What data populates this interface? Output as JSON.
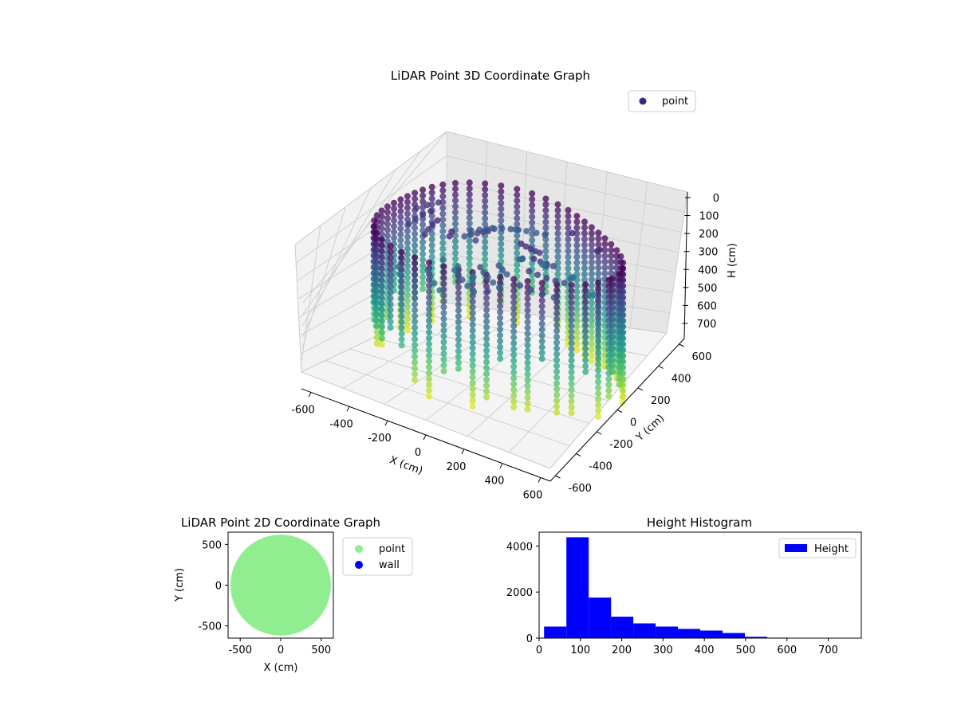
{
  "chart_data": [
    {
      "type": "scatter",
      "projection": "3d",
      "title": "LiDAR Point 3D Coordinate Graph",
      "xlabel": "X (cm)",
      "ylabel": "Y (cm)",
      "zlabel": "H (cm)",
      "xticks": [
        -600,
        -400,
        -200,
        0,
        200,
        400,
        600
      ],
      "yticks": [
        600,
        400,
        200,
        0,
        -200,
        -400,
        -600
      ],
      "zticks": [
        0,
        100,
        200,
        300,
        400,
        500,
        600,
        700
      ],
      "xlim": [
        -650,
        650
      ],
      "ylim": [
        -650,
        650
      ],
      "zlim": [
        0,
        780
      ],
      "z_axis_inverted": true,
      "colormap": "viridis",
      "grid": true,
      "legend": {
        "position": "top-right",
        "entries": [
          {
            "label": "point",
            "color": "#3b2a7a"
          }
        ]
      },
      "series": [
        {
          "name": "point",
          "description_of_shape": "ring of vertical point columns around a room, radius ~600 cm, heights 0–700 cm, colored by height",
          "ring_radius_cm": 600,
          "height_range_cm": [
            0,
            720
          ]
        }
      ]
    },
    {
      "type": "scatter",
      "title": "LiDAR Point 2D Coordinate Graph",
      "xlabel": "X (cm)",
      "ylabel": "Y (cm)",
      "xticks": [
        -500,
        0,
        500
      ],
      "yticks": [
        500,
        0,
        -500
      ],
      "xlim": [
        -650,
        650
      ],
      "ylim": [
        -650,
        650
      ],
      "legend": {
        "position": "outside-right",
        "entries": [
          {
            "label": "point",
            "color": "#90ee90"
          },
          {
            "label": "wall",
            "color": "#0000ff"
          }
        ]
      },
      "series": [
        {
          "name": "point",
          "color": "#90ee90",
          "shape": "filled disc",
          "radius_cm": 620,
          "center": [
            0,
            0
          ]
        },
        {
          "name": "wall",
          "color": "#0000ff"
        }
      ]
    },
    {
      "type": "bar",
      "subtype": "histogram",
      "title": "Height Histogram",
      "xlabel": "",
      "ylabel": "",
      "xticks": [
        0,
        100,
        200,
        300,
        400,
        500,
        600,
        700
      ],
      "yticks": [
        0,
        2000,
        4000
      ],
      "xlim": [
        0,
        780
      ],
      "ylim": [
        0,
        4600
      ],
      "color": "#0000ff",
      "legend": {
        "position": "top-right",
        "entries": [
          {
            "label": "Height",
            "color": "#0000ff"
          }
        ]
      },
      "bin_edges": [
        12,
        66,
        120,
        174,
        228,
        282,
        336,
        390,
        444,
        498,
        552,
        606,
        660,
        714
      ],
      "counts": [
        500,
        4380,
        1760,
        930,
        640,
        500,
        400,
        330,
        220,
        60,
        20,
        10,
        5
      ],
      "series": [
        {
          "name": "Height"
        }
      ]
    }
  ]
}
